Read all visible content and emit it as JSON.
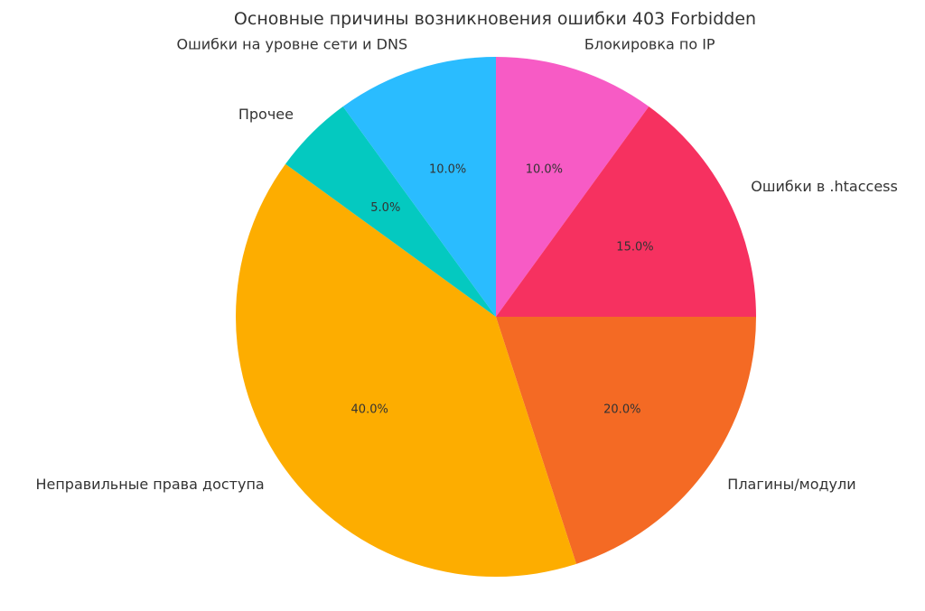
{
  "chart_data": {
    "type": "pie",
    "title": "Основные причины возникновения ошибки 403 Forbidden",
    "start_angle_deg": 90,
    "direction": "clockwise",
    "slices": [
      {
        "label": "Блокировка по IP",
        "value": 10.0,
        "pct_text": "10.0%",
        "color": "#f75bc5"
      },
      {
        "label": "Ошибки в .htaccess",
        "value": 15.0,
        "pct_text": "15.0%",
        "color": "#f63160"
      },
      {
        "label": "Плагины/модули",
        "value": 20.0,
        "pct_text": "20.0%",
        "color": "#f46a24"
      },
      {
        "label": "Неправильные права доступа",
        "value": 40.0,
        "pct_text": "40.0%",
        "color": "#fdad00"
      },
      {
        "label": "Прочее",
        "value": 5.0,
        "pct_text": "5.0%",
        "color": "#04c9c0"
      },
      {
        "label": "Ошибки на уровне сети и DNS",
        "value": 10.0,
        "pct_text": "10.0%",
        "color": "#2abcff"
      }
    ]
  }
}
